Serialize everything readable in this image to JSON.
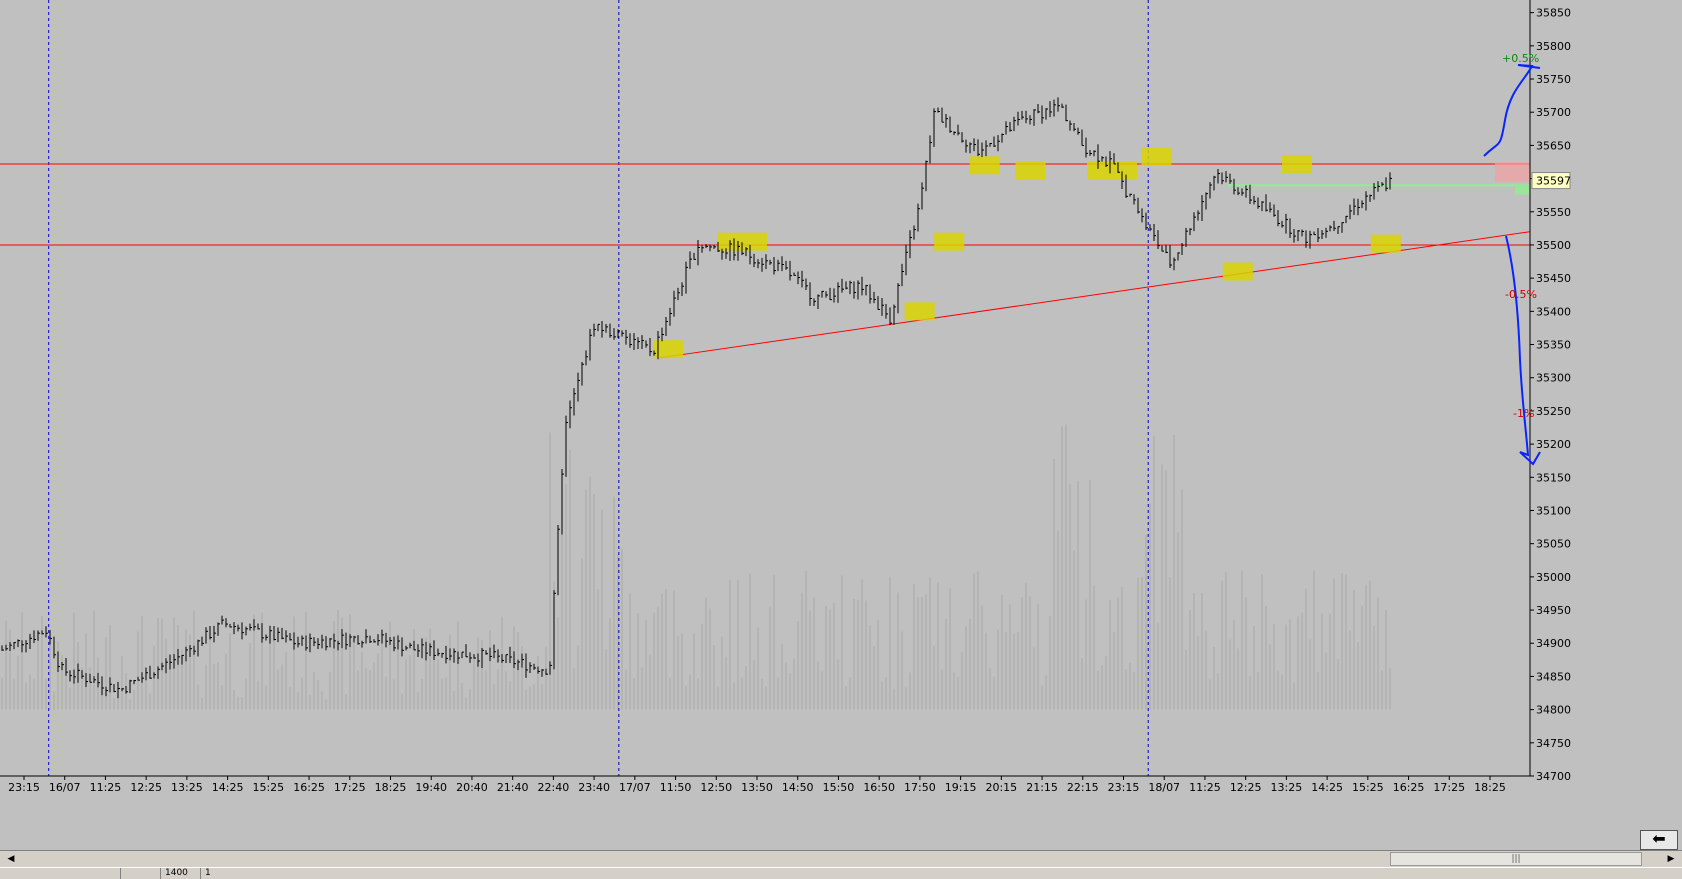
{
  "chart_data": {
    "type": "ohlc",
    "y_ticks": [
      34700,
      34750,
      34800,
      34850,
      34900,
      34950,
      35000,
      35050,
      35100,
      35150,
      35200,
      35250,
      35300,
      35350,
      35400,
      35450,
      35500,
      35550,
      35600,
      35650,
      35700,
      35750,
      35800,
      35850
    ],
    "ylim": [
      34700,
      35860
    ],
    "x_tick_labels": [
      "23:15",
      "16/07",
      "11:25",
      "12:25",
      "13:25",
      "14:25",
      "15:25",
      "16:25",
      "17:25",
      "18:25",
      "19:40",
      "20:40",
      "21:40",
      "22:40",
      "23:40",
      "17/07",
      "11:50",
      "12:50",
      "13:50",
      "14:50",
      "15:50",
      "16:50",
      "17:50",
      "19:15",
      "20:15",
      "21:15",
      "22:15",
      "23:15",
      "18/07",
      "11:25",
      "12:25",
      "13:25",
      "14:25",
      "15:25",
      "16:25",
      "17:25",
      "18:25"
    ],
    "session_separators": [
      "16/07",
      "17/07",
      "18/07"
    ],
    "last_price": "35597",
    "horizontal_levels": [
      35622,
      35500
    ],
    "trendline": {
      "from": 35330,
      "to": 35520
    },
    "price_path_anchors": [
      [
        0,
        34890
      ],
      [
        0.03,
        34920
      ],
      [
        0.04,
        34860
      ],
      [
        0.08,
        34830
      ],
      [
        0.12,
        34880
      ],
      [
        0.15,
        34930
      ],
      [
        0.2,
        34900
      ],
      [
        0.25,
        34910
      ],
      [
        0.28,
        34890
      ],
      [
        0.33,
        34880
      ],
      [
        0.37,
        34860
      ],
      [
        0.38,
        35220
      ],
      [
        0.4,
        35380
      ],
      [
        0.44,
        35340
      ],
      [
        0.47,
        35500
      ],
      [
        0.5,
        35490
      ],
      [
        0.53,
        35460
      ],
      [
        0.55,
        35420
      ],
      [
        0.58,
        35440
      ],
      [
        0.6,
        35390
      ],
      [
        0.62,
        35560
      ],
      [
        0.63,
        35700
      ],
      [
        0.66,
        35640
      ],
      [
        0.69,
        35690
      ],
      [
        0.715,
        35710
      ],
      [
        0.73,
        35650
      ],
      [
        0.75,
        35620
      ],
      [
        0.77,
        35540
      ],
      [
        0.79,
        35470
      ],
      [
        0.82,
        35610
      ],
      [
        0.85,
        35560
      ],
      [
        0.88,
        35510
      ],
      [
        0.9,
        35530
      ],
      [
        0.92,
        35570
      ],
      [
        0.94,
        35598
      ]
    ],
    "annotations": {
      "plus_half": "+0.5%",
      "minus_half": "-0.5%",
      "minus_one": "-1%"
    }
  },
  "colors": {
    "background": "#c0c0c0",
    "bars": "#000000",
    "volume": "#a9a9a9",
    "separator": "#0000c8",
    "levels": "#ff0000",
    "highlight": "#d8d400",
    "green_line": "#90ee90",
    "pen": "#0a24ff"
  },
  "statusbar": {
    "cell_1": "",
    "cell_2": "1400",
    "cell_3": "1"
  },
  "icons": {
    "nav": "back-arrow-icon",
    "scroll_left": "scroll-left-icon",
    "scroll_right": "scroll-right-icon",
    "grip": "scroll-grip-icon"
  }
}
